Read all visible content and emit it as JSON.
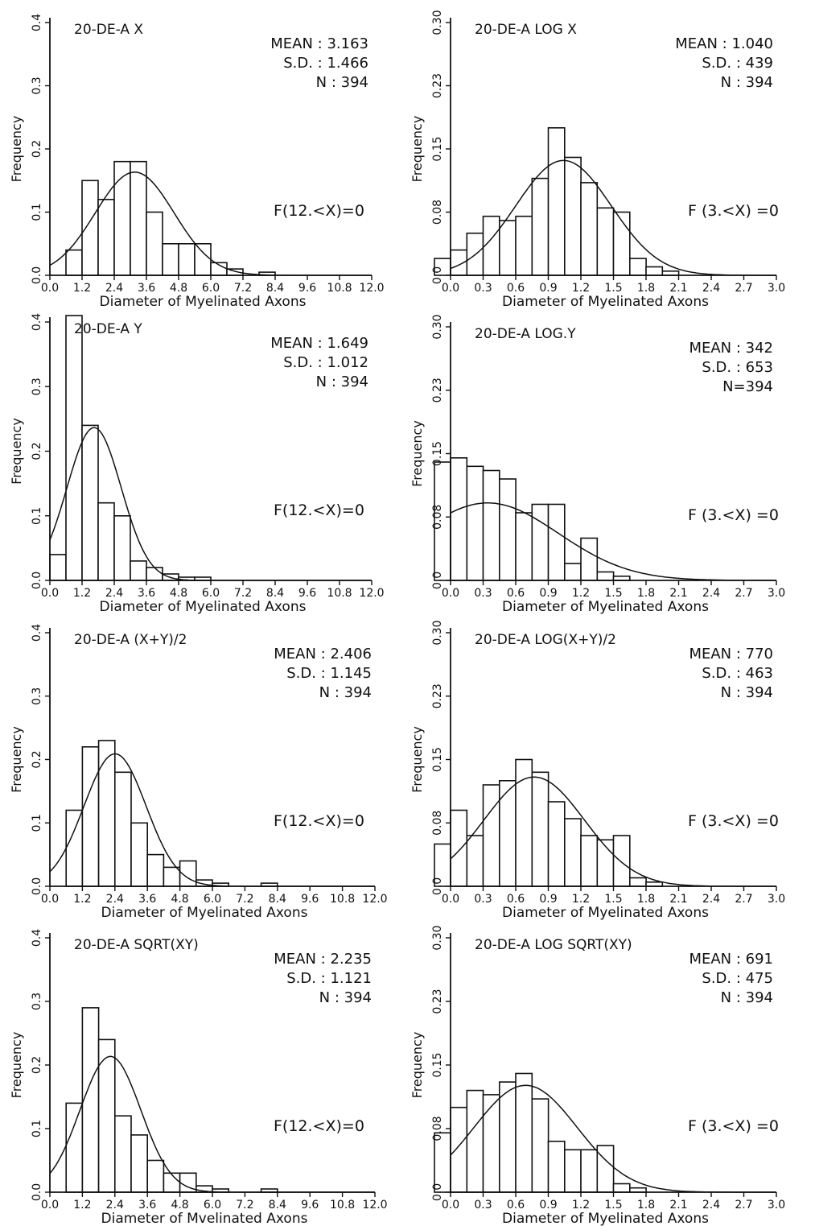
{
  "chart_data": [
    {
      "type": "bar",
      "title": "20-DE-A   X",
      "stats": [
        "MEAN : 3.163",
        "S.D.   : 1.466",
        "N : 394"
      ],
      "note": "F(12.<X)=0",
      "xlabel": "Diameter of Myelinated Axons",
      "ylabel": "Frequency",
      "xlim": [
        0,
        12
      ],
      "ylim": [
        0,
        0.4
      ],
      "xticks": [
        "0.0",
        "1.2",
        "2.4",
        "3.6",
        "4.8",
        "6.0",
        "7.2",
        "8.4",
        "9.6",
        "10.8",
        "12.0"
      ],
      "yticks": [
        "0.0",
        "0.1",
        "0.2",
        "0.3",
        "0.4"
      ],
      "bin_width": 0.6,
      "bin_start": 0.6,
      "values": [
        0.04,
        0.15,
        0.12,
        0.18,
        0.18,
        0.1,
        0.05,
        0.05,
        0.05,
        0.02,
        0.01,
        0.0,
        0.005
      ],
      "curve": {
        "mean": 3.163,
        "sd": 1.466
      }
    },
    {
      "type": "bar",
      "title": "20-DE-A   LOG X",
      "stats": [
        "MEAN : 1.040",
        "S.D.   :   439",
        "N : 394"
      ],
      "note": "F (3.<X)  =0",
      "xlabel": "Diameter of Myelinated Axons",
      "ylabel": "Frequency",
      "xlim": [
        0,
        3
      ],
      "ylim": [
        0,
        0.3
      ],
      "xticks": [
        "0.0",
        "0.3",
        "0.6",
        "0.9",
        "1.2",
        "1.5",
        "1.8",
        "2.1",
        "2.4",
        "2.7",
        "3.0"
      ],
      "yticks": [
        "0.0",
        "0.08",
        "0.15",
        "0.23",
        "0.30"
      ],
      "bin_width": 0.15,
      "bin_start": -0.15,
      "values": [
        0.02,
        0.03,
        0.05,
        0.07,
        0.065,
        0.07,
        0.115,
        0.175,
        0.14,
        0.11,
        0.08,
        0.075,
        0.02,
        0.01,
        0.005
      ],
      "curve": {
        "mean": 1.04,
        "sd": 0.439
      }
    },
    {
      "type": "bar",
      "title": "20-DE-A  Y",
      "stats": [
        "MEAN : 1.649",
        "S.D.   : 1.012",
        "N : 394"
      ],
      "note": "F(12.<X)=0",
      "xlabel": "Diameter of Myelinated Axons",
      "ylabel": "Frequency",
      "xlim": [
        0,
        12
      ],
      "ylim": [
        0,
        0.4
      ],
      "xticks": [
        "0.0",
        "1.2",
        "2.4",
        "3.6",
        "4.8",
        "6.0",
        "7.2",
        "8.4",
        "9.6",
        "10.8",
        "12.0"
      ],
      "yticks": [
        "0.0",
        "0.1",
        "0.2",
        "0.3",
        "0.4"
      ],
      "bin_width": 0.6,
      "bin_start": 0.0,
      "values": [
        0.04,
        0.41,
        0.24,
        0.12,
        0.1,
        0.03,
        0.02,
        0.01,
        0.005,
        0.005
      ],
      "curve": {
        "mean": 1.649,
        "sd": 1.012
      }
    },
    {
      "type": "bar",
      "title": "20-DE-A   LOG.Y",
      "stats": [
        "MEAN :  342",
        "S.D.   :  653",
        "N=394"
      ],
      "note": "F (3.<X)  =0",
      "xlabel": "Diameter of Myelinated Axons",
      "ylabel": "Frequency",
      "xlim": [
        0,
        3
      ],
      "ylim": [
        0,
        0.3
      ],
      "xticks": [
        "0.0",
        "0.3",
        "0.6",
        "0.9",
        "1.2",
        "1.5",
        "1.8",
        "2.1",
        "2.4",
        "2.7",
        "3.0"
      ],
      "yticks": [
        "0.0",
        "0.08",
        "0.15",
        "0.23",
        "0.30"
      ],
      "bin_width": 0.15,
      "bin_start": -0.15,
      "values": [
        0.14,
        0.145,
        0.135,
        0.13,
        0.12,
        0.08,
        0.09,
        0.09,
        0.02,
        0.05,
        0.01,
        0.005
      ],
      "curve": {
        "mean": 0.342,
        "sd": 0.653
      }
    },
    {
      "type": "bar",
      "title": "20-DE-A  (X+Y)/2",
      "stats": [
        "MEAN : 2.406",
        "S.D.   : 1.145",
        "N : 394"
      ],
      "note": "F(12.<X)=0",
      "xlabel": "Diameter of Myelinated Axons",
      "ylabel": "Frequency",
      "xlim": [
        0,
        12
      ],
      "ylim": [
        0,
        0.4
      ],
      "xticks": [
        "0.0",
        "1.2",
        "2.4",
        "3.6",
        "4.8",
        "6.0",
        "7.2",
        "8.4",
        "9.6",
        "10.8",
        "12.0"
      ],
      "yticks": [
        "0.0",
        "0.1",
        "0.2",
        "0.3",
        "0.4"
      ],
      "bin_width": 0.6,
      "bin_start": 0.6,
      "values": [
        0.12,
        0.22,
        0.23,
        0.18,
        0.1,
        0.05,
        0.03,
        0.04,
        0.01,
        0.005,
        0.0,
        0.0,
        0.005
      ],
      "curve": {
        "mean": 2.406,
        "sd": 1.145
      }
    },
    {
      "type": "bar",
      "title": "20-DE-A   LOG(X+Y)/2",
      "stats": [
        "MEAN :  770",
        "S.D.   :  463",
        "N : 394"
      ],
      "note": "F (3.<X)  =0",
      "xlabel": "Diameter of Myelinated Axons",
      "ylabel": "Frequency",
      "xlim": [
        0,
        3
      ],
      "ylim": [
        0,
        0.3
      ],
      "xticks": [
        "0.0",
        "0.3",
        "0.6",
        "0.9",
        "1.2",
        "1.5",
        "1.8",
        "2.1",
        "2.4",
        "2.7",
        "3.0"
      ],
      "yticks": [
        "0.0",
        "0.08",
        "0.15",
        "0.23",
        "0.30"
      ],
      "bin_width": 0.15,
      "bin_start": -0.15,
      "values": [
        0.05,
        0.09,
        0.06,
        0.12,
        0.125,
        0.15,
        0.135,
        0.1,
        0.08,
        0.06,
        0.055,
        0.06,
        0.01,
        0.005
      ],
      "curve": {
        "mean": 0.77,
        "sd": 0.463
      }
    },
    {
      "type": "bar",
      "title": "20-DE-A   SQRT(XY)",
      "stats": [
        "MEAN : 2.235",
        "S.D.   : 1.121",
        "N : 394"
      ],
      "note": "F(12.<X)=0",
      "xlabel": "Diameter of Mvelinated Axons",
      "ylabel": "Frequency",
      "xlim": [
        0,
        12
      ],
      "ylim": [
        0,
        0.4
      ],
      "xticks": [
        "0.0",
        "1.2",
        "2.4",
        "3.6",
        "4.8",
        "6.0",
        "7.2",
        "8.4",
        "9.6",
        "10.8",
        "12.0"
      ],
      "yticks": [
        "0.0",
        "0.1",
        "0.2",
        "0.3",
        "0.4"
      ],
      "bin_width": 0.6,
      "bin_start": 0.6,
      "values": [
        0.14,
        0.29,
        0.24,
        0.12,
        0.09,
        0.05,
        0.03,
        0.03,
        0.01,
        0.005,
        0.0,
        0.0,
        0.005
      ],
      "curve": {
        "mean": 2.235,
        "sd": 1.121
      }
    },
    {
      "type": "bar",
      "title": "20-DE-A   LOG SQRT(XY)",
      "stats": [
        "MEAN :  691",
        "S.D.   :  475",
        "N : 394"
      ],
      "note": "F (3.<X)  =0",
      "xlabel": "Diameter of Myelinated Axons",
      "ylabel": "Frequency",
      "xlim": [
        0,
        3
      ],
      "ylim": [
        0,
        0.3
      ],
      "xticks": [
        "0.0",
        "0.3",
        "0.6",
        "0.9",
        "1.2",
        "1.5",
        "1.8",
        "2.1",
        "2.4",
        "2.7",
        "3.0"
      ],
      "yticks": [
        "0.0",
        "0.08",
        "0.15",
        "0.23",
        "0.30"
      ],
      "bin_width": 0.15,
      "bin_start": -0.15,
      "values": [
        0.07,
        0.1,
        0.12,
        0.115,
        0.13,
        0.14,
        0.11,
        0.06,
        0.05,
        0.05,
        0.055,
        0.01,
        0.005
      ],
      "curve": {
        "mean": 0.691,
        "sd": 0.475
      }
    }
  ]
}
